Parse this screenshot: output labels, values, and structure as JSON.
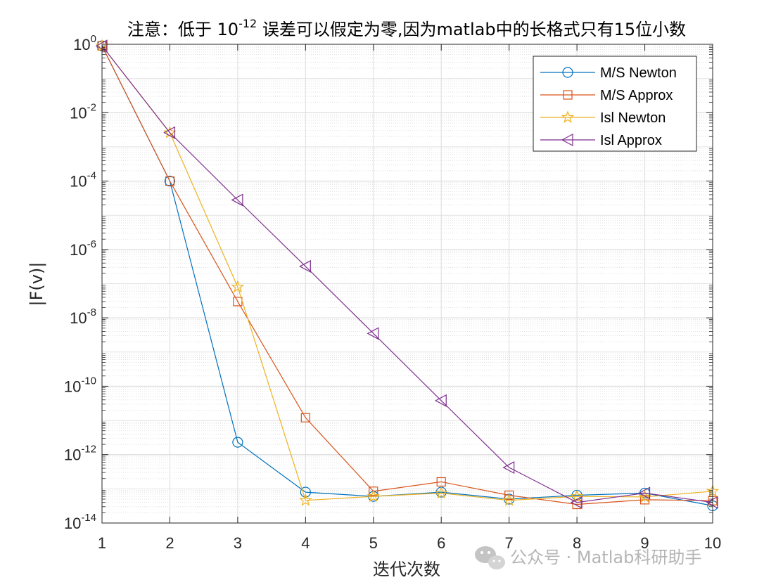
{
  "chart_data": {
    "type": "line",
    "title": {
      "prefix": "注意：低于 10",
      "exponent": "-12",
      "suffix": " 误差可以假定为零,因为matlab中的长格式只有15位小数"
    },
    "xlabel": "迭代次数",
    "ylabel": "|F(v)|",
    "xlim": [
      1,
      10
    ],
    "xticks": [
      "1",
      "2",
      "3",
      "4",
      "5",
      "6",
      "7",
      "8",
      "9",
      "10"
    ],
    "yscale": "log",
    "ylim": [
      1e-14,
      1
    ],
    "yticks": [
      {
        "base": "10",
        "exp": "0",
        "value": 1
      },
      {
        "base": "10",
        "exp": "-2",
        "value": 0.01
      },
      {
        "base": "10",
        "exp": "-4",
        "value": 0.0001
      },
      {
        "base": "10",
        "exp": "-6",
        "value": 1e-06
      },
      {
        "base": "10",
        "exp": "-8",
        "value": 1e-08
      },
      {
        "base": "10",
        "exp": "-10",
        "value": 1e-10
      },
      {
        "base": "10",
        "exp": "-12",
        "value": 1e-12
      },
      {
        "base": "10",
        "exp": "-14",
        "value": 1e-14
      }
    ],
    "grid": true,
    "minor_grid": true,
    "legend_position": "top-right",
    "x": [
      1,
      2,
      3,
      4,
      5,
      6,
      7,
      8,
      9,
      10
    ],
    "series": [
      {
        "name": "M/S Newton",
        "color": "#0072BD",
        "marker": "circle",
        "values": [
          0.9,
          0.0001,
          2.3e-12,
          8e-14,
          6e-14,
          8e-14,
          5e-14,
          6.5e-14,
          7.5e-14,
          3.2e-14
        ]
      },
      {
        "name": "M/S Approx",
        "color": "#D95319",
        "marker": "square",
        "values": [
          0.9,
          0.0001,
          3e-08,
          1.2e-11,
          8.5e-14,
          1.6e-13,
          6.5e-14,
          3.5e-14,
          4.8e-14,
          4.5e-14
        ]
      },
      {
        "name": "Isl Newton",
        "color": "#EDB120",
        "marker": "star",
        "values": [
          0.9,
          0.0026,
          8e-08,
          4.6e-14,
          6e-14,
          7.5e-14,
          4.6e-14,
          6e-14,
          5.8e-14,
          8.5e-14
        ]
      },
      {
        "name": "Isl Approx",
        "color": "#7E2F8E",
        "marker": "triangle-left",
        "values": [
          0.9,
          0.0026,
          2.8e-05,
          3.2e-07,
          3.5e-09,
          3.8e-11,
          4.2e-13,
          4e-14,
          7.5e-14,
          4e-14
        ]
      }
    ]
  },
  "watermark": {
    "text": "公众号 · Matlab科研助手",
    "icon": "wechat-icon"
  }
}
